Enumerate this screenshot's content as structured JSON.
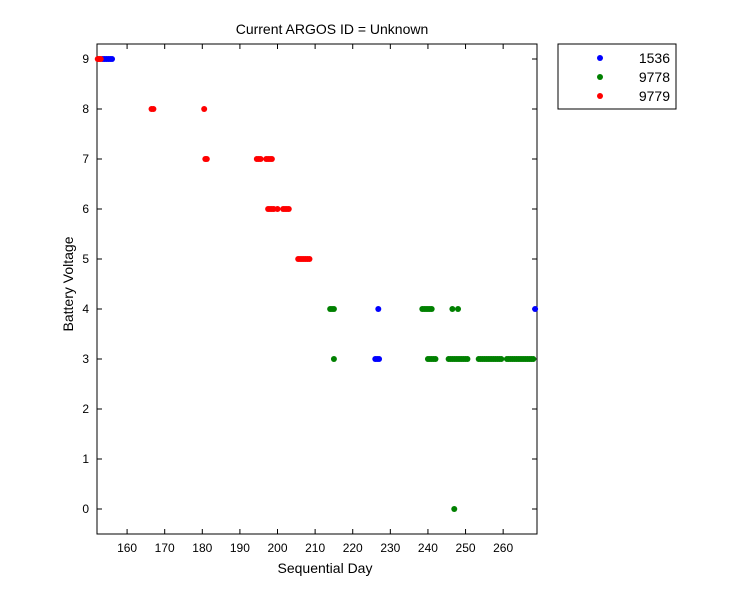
{
  "chart_data": {
    "type": "scatter",
    "title": "Current ARGOS ID = Unknown",
    "xlabel": "Sequential Day",
    "ylabel": "Battery Voltage",
    "xlim": [
      152,
      269
    ],
    "ylim": [
      -0.5,
      9.3
    ],
    "xticks": [
      160,
      170,
      180,
      190,
      200,
      210,
      220,
      230,
      240,
      250,
      260
    ],
    "yticks": [
      0,
      1,
      2,
      3,
      4,
      5,
      6,
      7,
      8,
      9
    ],
    "grid": false,
    "legend_position": "outside-top-right",
    "series": [
      {
        "name": "1536",
        "color": "#0000ff",
        "points": [
          [
            153.5,
            9
          ],
          [
            154,
            9
          ],
          [
            154.5,
            9
          ],
          [
            155,
            9
          ],
          [
            155.5,
            9
          ],
          [
            156,
            9
          ],
          [
            226,
            3
          ],
          [
            226.5,
            3
          ],
          [
            227,
            3
          ],
          [
            226.8,
            4
          ],
          [
            268.5,
            4
          ]
        ]
      },
      {
        "name": "9778",
        "color": "#008000",
        "points": [
          [
            214,
            4
          ],
          [
            214.5,
            4
          ],
          [
            215,
            4
          ],
          [
            215,
            3
          ],
          [
            238.5,
            4
          ],
          [
            239,
            4
          ],
          [
            239.5,
            4
          ],
          [
            240,
            4
          ],
          [
            240.5,
            4
          ],
          [
            241,
            4
          ],
          [
            246.5,
            4
          ],
          [
            248,
            4
          ],
          [
            240,
            3
          ],
          [
            240.5,
            3
          ],
          [
            241,
            3
          ],
          [
            241.5,
            3
          ],
          [
            242,
            3
          ],
          [
            245.5,
            3
          ],
          [
            246,
            3
          ],
          [
            246.5,
            3
          ],
          [
            247,
            3
          ],
          [
            247.5,
            3
          ],
          [
            248,
            3
          ],
          [
            248.5,
            3
          ],
          [
            249,
            3
          ],
          [
            249.5,
            3
          ],
          [
            250,
            3
          ],
          [
            250.5,
            3
          ],
          [
            253.5,
            3
          ],
          [
            254,
            3
          ],
          [
            254.5,
            3
          ],
          [
            255,
            3
          ],
          [
            255.5,
            3
          ],
          [
            256,
            3
          ],
          [
            256.5,
            3
          ],
          [
            257,
            3
          ],
          [
            257.5,
            3
          ],
          [
            258,
            3
          ],
          [
            258.5,
            3
          ],
          [
            259,
            3
          ],
          [
            259.5,
            3
          ],
          [
            261,
            3
          ],
          [
            261.5,
            3
          ],
          [
            262,
            3
          ],
          [
            262.5,
            3
          ],
          [
            263,
            3
          ],
          [
            263.5,
            3
          ],
          [
            264,
            3
          ],
          [
            264.5,
            3
          ],
          [
            265,
            3
          ],
          [
            265.5,
            3
          ],
          [
            266,
            3
          ],
          [
            266.5,
            3
          ],
          [
            267,
            3
          ],
          [
            267.5,
            3
          ],
          [
            268,
            3
          ],
          [
            247,
            0
          ]
        ]
      },
      {
        "name": "9779",
        "color": "#ff0000",
        "points": [
          [
            152.2,
            9
          ],
          [
            152.6,
            9
          ],
          [
            153,
            9
          ],
          [
            166.5,
            8
          ],
          [
            167,
            8
          ],
          [
            180.5,
            8
          ],
          [
            180.8,
            7
          ],
          [
            181.2,
            7
          ],
          [
            194.5,
            7
          ],
          [
            195,
            7
          ],
          [
            195.5,
            7
          ],
          [
            197,
            7
          ],
          [
            197.5,
            7
          ],
          [
            198,
            7
          ],
          [
            198.5,
            7
          ],
          [
            197.5,
            6
          ],
          [
            198,
            6
          ],
          [
            198.5,
            6
          ],
          [
            199,
            6
          ],
          [
            200,
            6
          ],
          [
            201.5,
            6
          ],
          [
            202,
            6
          ],
          [
            202.5,
            6
          ],
          [
            203,
            6
          ],
          [
            205.5,
            5
          ],
          [
            206,
            5
          ],
          [
            206.5,
            5
          ],
          [
            207,
            5
          ],
          [
            207.5,
            5
          ],
          [
            208,
            5
          ],
          [
            208.5,
            5
          ]
        ]
      }
    ]
  }
}
